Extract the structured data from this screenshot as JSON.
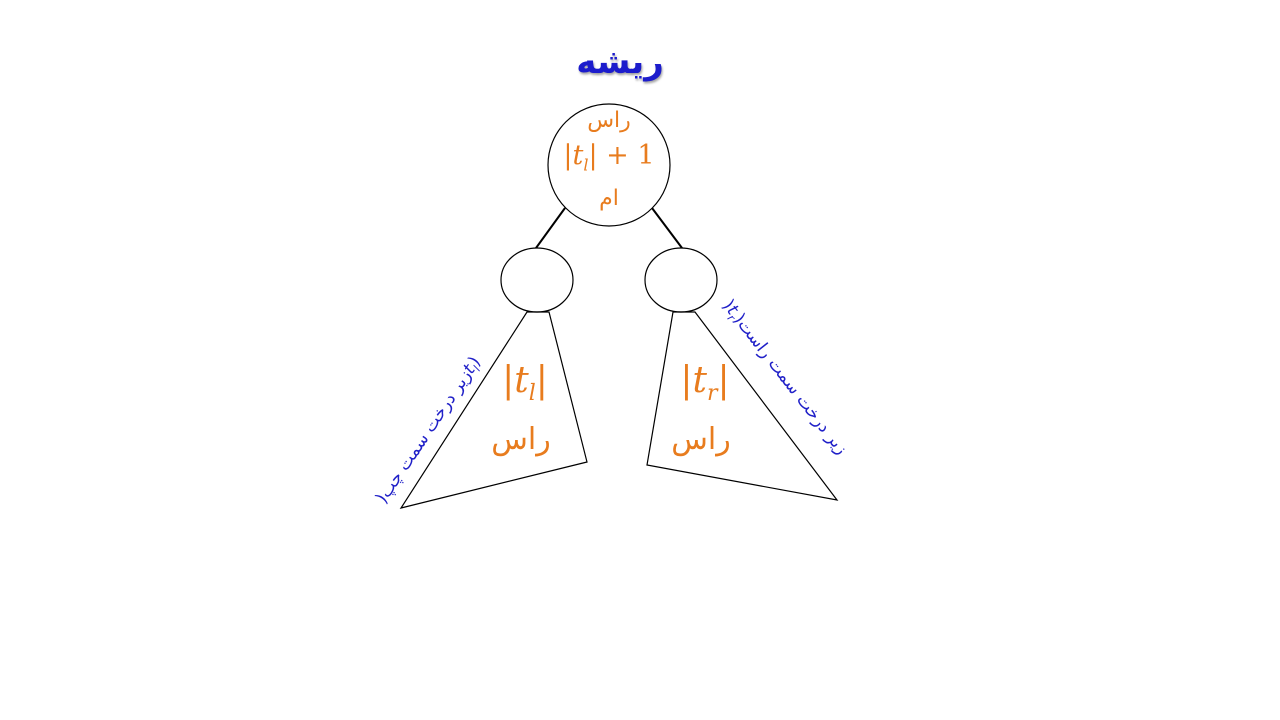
{
  "diagram": {
    "root_title": "ریشه",
    "root_node": {
      "top_text": "راس",
      "formula_lhs": "|t",
      "formula_sub": "l",
      "formula_rhs": "| + 1",
      "bottom_text": "ام"
    },
    "left_subtree": {
      "size_main": "|t",
      "size_sub": "l",
      "size_end": "|",
      "unit": "راس",
      "side_label": "زیر درخت سمت چپ(",
      "side_var": "t",
      "side_sub": "l",
      "side_close": ")"
    },
    "right_subtree": {
      "size_main": "|t",
      "size_sub": "r",
      "size_end": "|",
      "unit": "راس",
      "side_label": "زیر درخت سمت راست(",
      "side_var": "t",
      "side_sub": "r",
      "side_close": ")"
    },
    "colors": {
      "title": "#1c1ccc",
      "orange": "#e87c1e",
      "side": "#2020c8",
      "line": "#000000"
    }
  }
}
